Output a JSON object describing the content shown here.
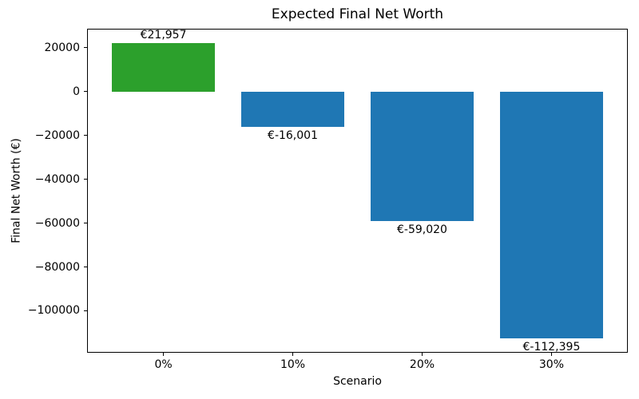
{
  "figure": {
    "background": "#ffffff",
    "spine_color": "#000000",
    "text_color": "#000000"
  },
  "chart_data": {
    "type": "bar",
    "title": "Expected Final Net Worth",
    "xlabel": "Scenario",
    "ylabel": "Final Net Worth (€)",
    "categories": [
      "0%",
      "10%",
      "20%",
      "30%"
    ],
    "values": [
      21957,
      -16001,
      -59020,
      -112395
    ],
    "bar_labels": [
      "€21,957",
      "€-16,001",
      "€-59,020",
      "€-112,395"
    ],
    "bar_colors": [
      "#2ca02c",
      "#1f77b4",
      "#1f77b4",
      "#1f77b4"
    ],
    "positive_color": "#2ca02c",
    "negative_color": "#1f77b4",
    "yticks": [
      {
        "value": 20000,
        "label": "20000"
      },
      {
        "value": 0,
        "label": "0"
      },
      {
        "value": -20000,
        "label": "−20000"
      },
      {
        "value": -40000,
        "label": "−40000"
      },
      {
        "value": -60000,
        "label": "−60000"
      },
      {
        "value": -80000,
        "label": "−80000"
      },
      {
        "value": -100000,
        "label": "−100000"
      }
    ],
    "ylim": [
      -119113,
      28675
    ],
    "xlim": [
      -0.59,
      3.59
    ],
    "bar_width_units": 0.8,
    "grid": false,
    "legend": null
  }
}
